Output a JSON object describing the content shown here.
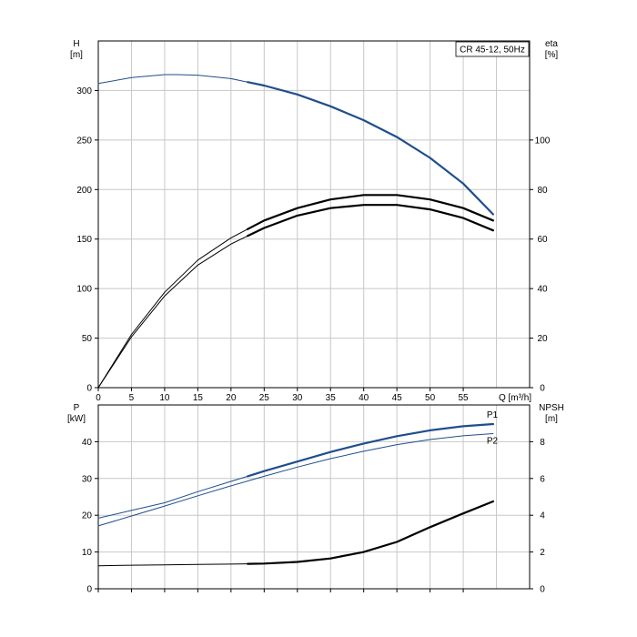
{
  "chart_data": [
    {
      "type": "line",
      "title": "CR 45-12, 50Hz",
      "xlabel": "Q [m³/h]",
      "ylabel": [
        "H",
        "[m]"
      ],
      "y2label": [
        "eta",
        "[%]"
      ],
      "xlim": [
        0,
        65
      ],
      "ylim": [
        0,
        350
      ],
      "y2lim": [
        0,
        140
      ],
      "x_ticks": [
        0,
        5,
        10,
        15,
        20,
        25,
        30,
        35,
        40,
        45,
        50,
        55
      ],
      "y_ticks": [
        0,
        50,
        100,
        150,
        200,
        250,
        300
      ],
      "y2_ticks": [
        0,
        20,
        40,
        60,
        80,
        100
      ],
      "grid": true,
      "series": [
        {
          "axis": "left",
          "color": "#1f4e8c",
          "bold_from_x": 22.5,
          "x": [
            0,
            5,
            10,
            12,
            15,
            20,
            25,
            30,
            35,
            40,
            45,
            50,
            55,
            59.5
          ],
          "values": [
            307,
            313,
            316,
            316,
            315.5,
            312,
            305,
            296,
            284,
            270,
            253,
            232,
            206,
            175
          ]
        },
        {
          "axis": "right",
          "color": "#000000",
          "bold_from_x": 22.5,
          "x": [
            0,
            5,
            10,
            15,
            20,
            25,
            30,
            35,
            40,
            45,
            50,
            55,
            59.5
          ],
          "values": [
            0,
            21.5,
            38.5,
            51.5,
            60.5,
            67.5,
            72.5,
            76,
            77.8,
            77.8,
            76,
            72.5,
            67.5
          ]
        },
        {
          "axis": "right",
          "color": "#000000",
          "bold_from_x": 22.5,
          "x": [
            0,
            5,
            10,
            15,
            20,
            25,
            30,
            35,
            40,
            45,
            50,
            55,
            59.5
          ],
          "values": [
            0,
            20.5,
            37,
            49.5,
            58,
            64.5,
            69.5,
            72.5,
            73.8,
            73.8,
            72,
            68.5,
            63.5
          ]
        }
      ]
    },
    {
      "type": "line",
      "xlabel": "",
      "ylabel": [
        "P",
        "[kW]"
      ],
      "y2label": [
        "NPSH",
        "[m]"
      ],
      "xlim": [
        0,
        65
      ],
      "ylim": [
        0,
        50
      ],
      "y2lim": [
        0,
        10
      ],
      "x_ticks": [
        0,
        5,
        10,
        15,
        20,
        25,
        30,
        35,
        40,
        45,
        50,
        55
      ],
      "y_ticks": [
        0,
        10,
        20,
        30,
        40
      ],
      "y2_ticks": [
        0,
        2,
        4,
        6,
        8
      ],
      "grid": true,
      "series": [
        {
          "name": "P1",
          "axis": "left",
          "color": "#1f4e8c",
          "bold_from_x": 22.5,
          "x": [
            0,
            5,
            10,
            15,
            20,
            25,
            30,
            35,
            40,
            45,
            50,
            55,
            59.5
          ],
          "values": [
            19.2,
            21.3,
            23.4,
            26.4,
            29.2,
            32,
            34.6,
            37.2,
            39.5,
            41.5,
            43.1,
            44.2,
            44.8
          ]
        },
        {
          "name": "P2",
          "axis": "left",
          "color": "#1f4e8c",
          "bold_from_x": 99,
          "x": [
            0,
            5,
            10,
            15,
            20,
            25,
            30,
            35,
            40,
            45,
            50,
            55,
            59.5
          ],
          "values": [
            17.1,
            19.8,
            22.5,
            25.3,
            28,
            30.6,
            33.1,
            35.4,
            37.4,
            39.2,
            40.6,
            41.6,
            42.2
          ]
        },
        {
          "axis": "right",
          "color": "#000000",
          "bold_from_x": 22.5,
          "x": [
            0,
            5,
            10,
            15,
            20,
            25,
            30,
            35,
            40,
            45,
            50,
            55,
            59.5
          ],
          "values": [
            1.25,
            1.28,
            1.3,
            1.32,
            1.34,
            1.37,
            1.46,
            1.65,
            2.0,
            2.55,
            3.35,
            4.1,
            4.75
          ]
        }
      ]
    }
  ]
}
